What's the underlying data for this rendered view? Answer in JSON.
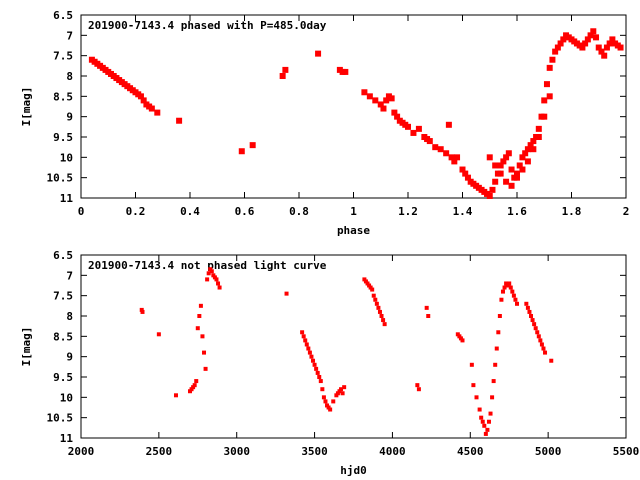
{
  "point_color": "#ff0000",
  "chart_data": [
    {
      "type": "scatter",
      "title": "201900-7143.4 phased with P=485.0day",
      "xlabel": "phase",
      "ylabel": "I[mag]",
      "xlim": [
        0,
        2
      ],
      "ylim": [
        6.5,
        11
      ],
      "y_inverted": true,
      "x_ticks": [
        "0",
        "0.2",
        "0.4",
        "0.6",
        "0.8",
        "1",
        "1.2",
        "1.4",
        "1.6",
        "1.8",
        "2"
      ],
      "y_ticks": [
        "6.5",
        "7",
        "7.5",
        "8",
        "8.5",
        "9",
        "9.5",
        "10",
        "10.5",
        "11"
      ],
      "grid": false,
      "series": [
        {
          "x": [
            0.04,
            0.05,
            0.06,
            0.07,
            0.08,
            0.09,
            0.1,
            0.11,
            0.12,
            0.13,
            0.14,
            0.15,
            0.16,
            0.17,
            0.18,
            0.19,
            0.2,
            0.21,
            0.22,
            0.23,
            0.24,
            0.25,
            0.26,
            0.28,
            0.36,
            0.59,
            0.63,
            0.74,
            0.75,
            0.87,
            0.95,
            0.96,
            0.97,
            1.04,
            1.06,
            1.08,
            1.1,
            1.11,
            1.12,
            1.13,
            1.14,
            1.15,
            1.16,
            1.17,
            1.18,
            1.19,
            1.2,
            1.22,
            1.24,
            1.26,
            1.27,
            1.28,
            1.3,
            1.32,
            1.34,
            1.35,
            1.36,
            1.37,
            1.38,
            1.4,
            1.41,
            1.42,
            1.43,
            1.44,
            1.45,
            1.46,
            1.47,
            1.48,
            1.49,
            1.5,
            1.51,
            1.52,
            1.53,
            1.54,
            1.55,
            1.56,
            1.57,
            1.58,
            1.59,
            1.6,
            1.61,
            1.62,
            1.63,
            1.64,
            1.65,
            1.66,
            1.67,
            1.68,
            1.69,
            1.7,
            1.71,
            1.72,
            1.73,
            1.74,
            1.75,
            1.76,
            1.77,
            1.78,
            1.79,
            1.8,
            1.81,
            1.82,
            1.83,
            1.84,
            1.85,
            1.86,
            1.87,
            1.88,
            1.89,
            1.9,
            1.91,
            1.92,
            1.93,
            1.94,
            1.95,
            1.96,
            1.97,
            1.98,
            1.5,
            1.52,
            1.54,
            1.56,
            1.58,
            1.6,
            1.62,
            1.64,
            1.66,
            1.68,
            1.7,
            1.72
          ],
          "y": [
            7.6,
            7.65,
            7.7,
            7.75,
            7.8,
            7.85,
            7.9,
            7.95,
            8.0,
            8.05,
            8.1,
            8.15,
            8.2,
            8.25,
            8.3,
            8.35,
            8.4,
            8.45,
            8.5,
            8.6,
            8.7,
            8.75,
            8.8,
            8.9,
            9.1,
            9.85,
            9.7,
            8.0,
            7.85,
            7.45,
            7.85,
            7.9,
            7.9,
            8.4,
            8.5,
            8.6,
            8.7,
            8.8,
            8.6,
            8.5,
            8.55,
            8.9,
            9.0,
            9.1,
            9.15,
            9.2,
            9.25,
            9.4,
            9.3,
            9.5,
            9.55,
            9.6,
            9.75,
            9.8,
            9.9,
            9.2,
            10.0,
            10.1,
            10.0,
            10.3,
            10.4,
            10.5,
            10.6,
            10.65,
            10.7,
            10.75,
            10.8,
            10.85,
            10.9,
            10.95,
            10.8,
            10.6,
            10.4,
            10.2,
            10.1,
            10.0,
            9.9,
            10.3,
            10.5,
            10.4,
            10.2,
            10.0,
            9.9,
            9.8,
            9.7,
            9.6,
            9.5,
            9.3,
            9.0,
            8.6,
            8.2,
            7.8,
            7.6,
            7.4,
            7.3,
            7.2,
            7.1,
            7.0,
            7.05,
            7.1,
            7.15,
            7.2,
            7.25,
            7.3,
            7.2,
            7.1,
            7.0,
            6.9,
            7.05,
            7.3,
            7.4,
            7.5,
            7.3,
            7.2,
            7.1,
            7.2,
            7.25,
            7.3,
            10.0,
            10.2,
            10.4,
            10.6,
            10.7,
            10.5,
            10.3,
            10.1,
            9.8,
            9.5,
            9.0,
            8.5
          ]
        }
      ]
    },
    {
      "type": "scatter",
      "title": "201900-7143.4 not phased light curve",
      "xlabel": "hjd0",
      "ylabel": "I[mag]",
      "xlim": [
        2000,
        5500
      ],
      "ylim": [
        6.5,
        11
      ],
      "y_inverted": true,
      "x_ticks": [
        "2000",
        "2500",
        "3000",
        "3500",
        "4000",
        "4500",
        "5000",
        "5500"
      ],
      "y_ticks": [
        "6.5",
        "7",
        "7.5",
        "8",
        "8.5",
        "9",
        "9.5",
        "10",
        "10.5",
        "11"
      ],
      "grid": false,
      "series": [
        {
          "x": [
            2390,
            2395,
            2500,
            2610,
            2700,
            2710,
            2720,
            2730,
            2740,
            2750,
            2760,
            2770,
            2780,
            2790,
            2800,
            2810,
            2820,
            2830,
            2840,
            2850,
            2860,
            2870,
            2880,
            2890,
            3320,
            3420,
            3430,
            3440,
            3450,
            3460,
            3470,
            3480,
            3490,
            3500,
            3510,
            3520,
            3530,
            3540,
            3550,
            3560,
            3570,
            3580,
            3590,
            3600,
            3620,
            3640,
            3650,
            3660,
            3670,
            3680,
            3690,
            3820,
            3830,
            3840,
            3850,
            3860,
            3870,
            3880,
            3890,
            3900,
            3910,
            3920,
            3930,
            3940,
            3950,
            4160,
            4170,
            4220,
            4230,
            4420,
            4430,
            4440,
            4450,
            4510,
            4520,
            4540,
            4560,
            4570,
            4580,
            4590,
            4600,
            4610,
            4620,
            4630,
            4640,
            4650,
            4660,
            4670,
            4680,
            4690,
            4700,
            4710,
            4720,
            4730,
            4740,
            4750,
            4760,
            4770,
            4780,
            4790,
            4800,
            4860,
            4870,
            4880,
            4890,
            4900,
            4910,
            4920,
            4930,
            4940,
            4950,
            4960,
            4970,
            4980,
            5020
          ],
          "y": [
            7.85,
            7.9,
            8.45,
            9.95,
            9.85,
            9.8,
            9.75,
            9.7,
            9.6,
            8.3,
            8.0,
            7.75,
            8.5,
            8.9,
            9.3,
            7.1,
            6.95,
            6.85,
            6.9,
            7.0,
            7.05,
            7.1,
            7.2,
            7.3,
            7.45,
            8.4,
            8.5,
            8.6,
            8.7,
            8.8,
            8.9,
            9.0,
            9.1,
            9.2,
            9.3,
            9.4,
            9.5,
            9.6,
            9.8,
            10.0,
            10.1,
            10.2,
            10.25,
            10.3,
            10.1,
            9.95,
            9.9,
            9.85,
            9.8,
            9.9,
            9.75,
            7.1,
            7.15,
            7.2,
            7.25,
            7.3,
            7.35,
            7.5,
            7.6,
            7.7,
            7.8,
            7.9,
            8.0,
            8.1,
            8.2,
            9.7,
            9.8,
            7.8,
            8.0,
            8.45,
            8.5,
            8.55,
            8.6,
            9.2,
            9.7,
            10.0,
            10.3,
            10.5,
            10.6,
            10.7,
            10.9,
            10.8,
            10.6,
            10.4,
            10.0,
            9.6,
            9.2,
            8.8,
            8.4,
            8.0,
            7.6,
            7.4,
            7.3,
            7.2,
            7.25,
            7.2,
            7.3,
            7.4,
            7.5,
            7.6,
            7.7,
            7.7,
            7.8,
            7.9,
            8.0,
            8.1,
            8.2,
            8.3,
            8.4,
            8.5,
            8.6,
            8.7,
            8.8,
            8.9,
            9.1
          ]
        }
      ]
    }
  ]
}
